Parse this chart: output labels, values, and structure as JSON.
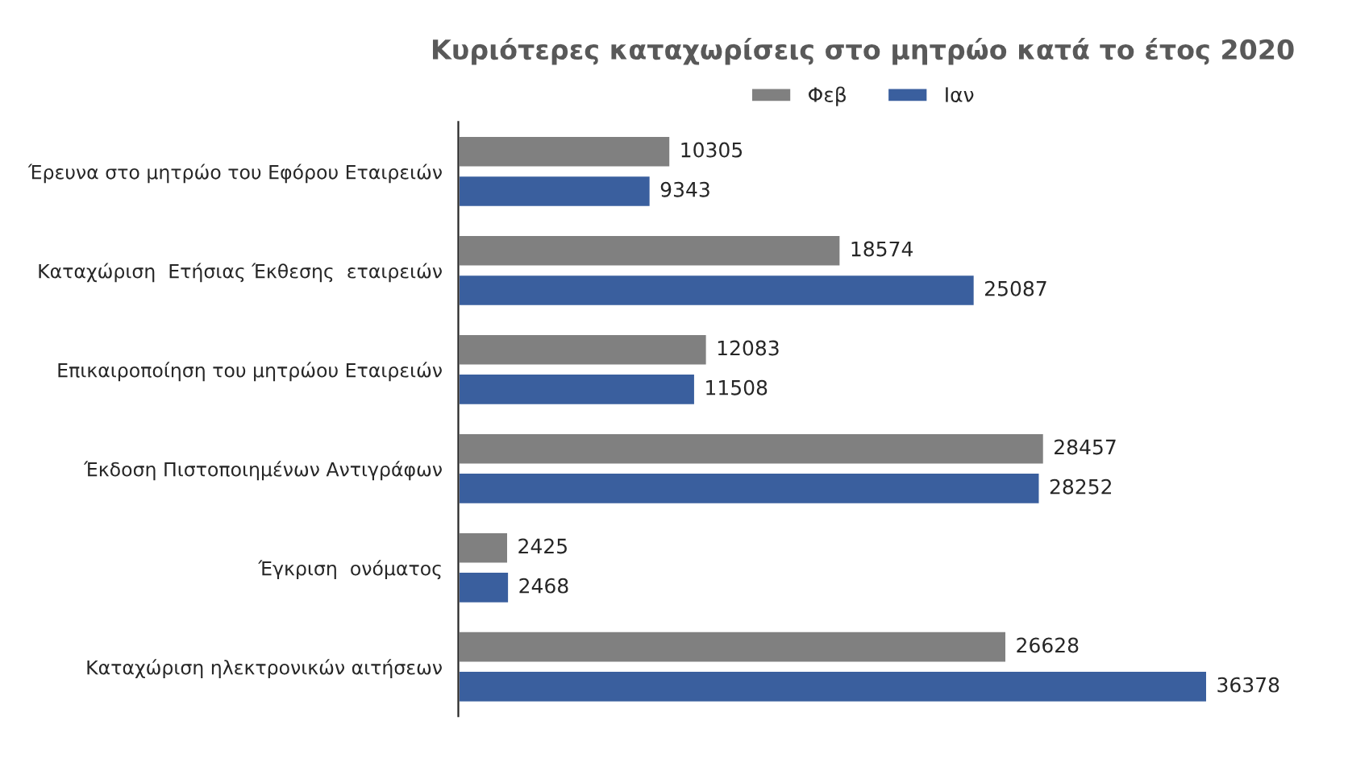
{
  "chart_data": {
    "type": "bar",
    "orientation": "horizontal",
    "title": "Κυριότερες καταχωρίσεις στο μητρώο κατά το έτος 2020",
    "categories": [
      "Έρευνα στο μητρώο του Εφόρου Εταιρειών",
      "Καταχώριση  Ετήσιας Έκθεσης  εταιρειών",
      "Επικαιροποίηση του μητρώου Εταιρειών",
      "Έκδοση Πιστοποιημένων Αντιγράφων",
      "Έγκριση  ονόματος",
      "Καταχώριση ηλεκτρονικών αιτήσεων"
    ],
    "series": [
      {
        "name": "Φεβ",
        "color": "#808080",
        "values": [
          10305,
          18574,
          12083,
          28457,
          2425,
          26628
        ]
      },
      {
        "name": "Ιαν",
        "color": "#3a5f9e",
        "values": [
          9343,
          25087,
          11508,
          28252,
          2468,
          36378
        ]
      }
    ],
    "data_labels": true,
    "legend": "top",
    "grid": false
  }
}
